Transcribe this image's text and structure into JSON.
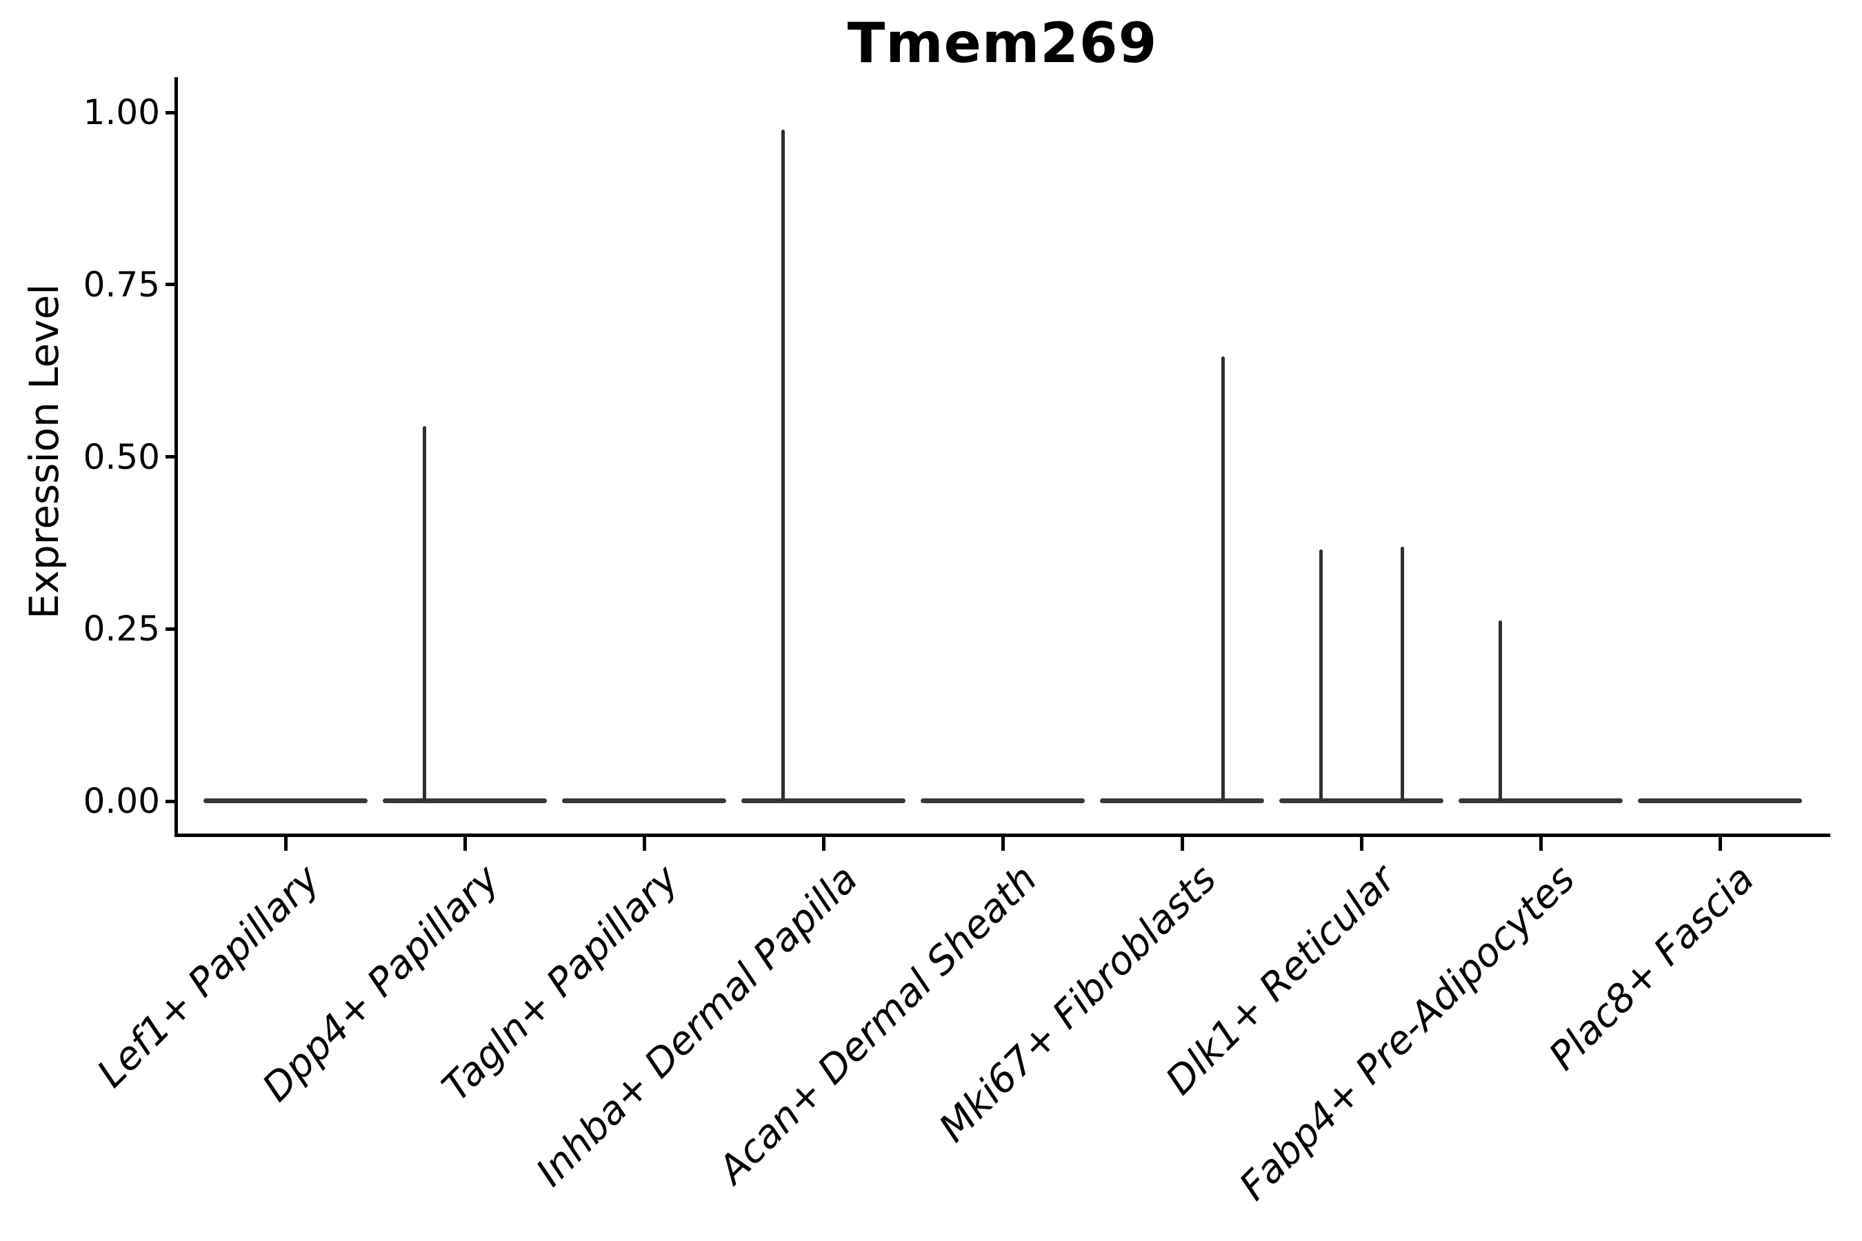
{
  "chart_data": {
    "type": "violin",
    "title": "Tmem269",
    "xlabel": "",
    "ylabel": "Expression Level",
    "ylim": [
      0,
      1.0
    ],
    "grid": false,
    "legend_position": "none",
    "ytick_labels": [
      "1.00",
      "0.75",
      "0.50",
      "0.25",
      "0.00"
    ],
    "ytick_values": [
      1.0,
      0.75,
      0.5,
      0.25,
      0.0
    ],
    "categories": [
      "Lef1+ Papillary",
      "Dpp4+ Papillary",
      "Tagln+ Papillary",
      "Inhba+ Dermal Papilla",
      "Acan+ Dermal Sheath",
      "Mki67+ Fibroblasts",
      "Dlk1+ Reticular",
      "Fabp4+ Pre-Adipocytes",
      "Plac8+ Fascia"
    ],
    "violins": [
      {
        "category": "Lef1+ Papillary",
        "baseline_value": 0.0,
        "spikes": []
      },
      {
        "category": "Dpp4+ Papillary",
        "baseline_value": 0.0,
        "spikes": [
          {
            "side": "left",
            "value": 0.545
          }
        ]
      },
      {
        "category": "Tagln+ Papillary",
        "baseline_value": 0.0,
        "spikes": []
      },
      {
        "category": "Inhba+ Dermal Papilla",
        "baseline_value": 0.0,
        "spikes": [
          {
            "side": "left",
            "value": 0.975
          }
        ]
      },
      {
        "category": "Acan+ Dermal Sheath",
        "baseline_value": 0.0,
        "spikes": []
      },
      {
        "category": "Mki67+ Fibroblasts",
        "baseline_value": 0.0,
        "spikes": [
          {
            "side": "right",
            "value": 0.646
          }
        ]
      },
      {
        "category": "Dlk1+ Reticular",
        "baseline_value": 0.0,
        "spikes": [
          {
            "side": "left",
            "value": 0.365
          },
          {
            "side": "right",
            "value": 0.369
          }
        ]
      },
      {
        "category": "Fabp4+ Pre-Adipocytes",
        "baseline_value": 0.0,
        "spikes": [
          {
            "side": "left",
            "value": 0.262
          }
        ]
      },
      {
        "category": "Plac8+ Fascia",
        "baseline_value": 0.0,
        "spikes": []
      }
    ],
    "colors": {
      "violin_outline": "#373737",
      "spike": "#2e2e2e",
      "axis": "#000000",
      "text": "#000000",
      "background": "#ffffff"
    }
  }
}
